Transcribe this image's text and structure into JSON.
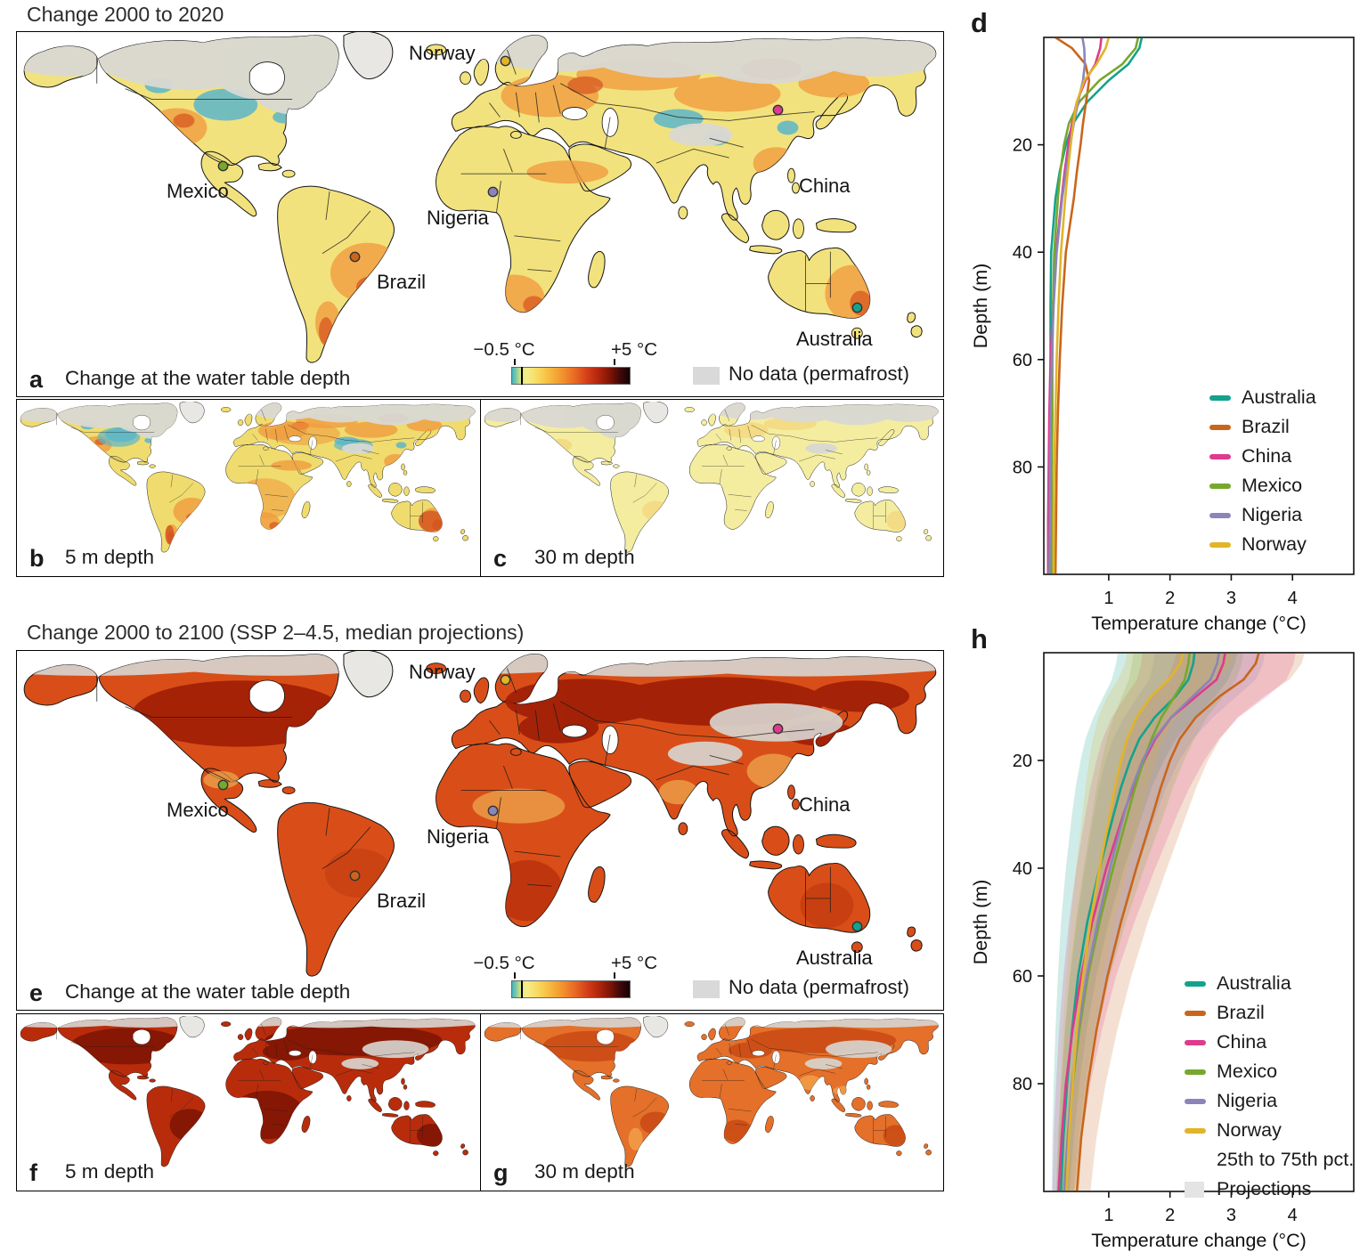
{
  "figure": {
    "section1_title": "Change 2000 to 2020",
    "section2_title": "Change 2000 to 2100 (SSP 2–4.5, median projections)",
    "colorbar": {
      "min": "−0.5 °C",
      "max": "+5 °C",
      "range": [
        -0.5,
        5
      ],
      "nodata": "No data (permafrost)",
      "nodata_color": "#d9d9d9"
    },
    "panels": {
      "a": {
        "letter": "a",
        "caption": "Change at the water table depth"
      },
      "b": {
        "letter": "b",
        "caption": "5 m depth"
      },
      "c": {
        "letter": "c",
        "caption": "30 m depth"
      },
      "d": {
        "letter": "d"
      },
      "e": {
        "letter": "e",
        "caption": "Change at the water table depth"
      },
      "f": {
        "letter": "f",
        "caption": "5 m depth"
      },
      "g": {
        "letter": "g",
        "caption": "30 m depth"
      },
      "h": {
        "letter": "h"
      }
    },
    "markers": [
      {
        "name": "Norway",
        "color": "#e2b428"
      },
      {
        "name": "China",
        "color": "#de3a8e"
      },
      {
        "name": "Mexico",
        "color": "#76a82d"
      },
      {
        "name": "Nigeria",
        "color": "#8b85b9"
      },
      {
        "name": "Brazil",
        "color": "#c9661c"
      },
      {
        "name": "Australia",
        "color": "#14a28c"
      }
    ],
    "projections_legend": {
      "range_label": "25th to 75th pct.",
      "name": "Projections",
      "swatch_color": "#e4e4e4"
    }
  },
  "chart_data": [
    {
      "type": "line",
      "panel": "d",
      "title": "Groundwater temperature change 2000 to 2020 vs depth",
      "xlabel": "Temperature change (°C)",
      "ylabel": "Depth (m)",
      "xlim": [
        0,
        5
      ],
      "ylim": [
        0,
        100
      ],
      "xticks": [
        1,
        2,
        3,
        4
      ],
      "yticks": [
        20,
        40,
        60,
        80
      ],
      "legend_position": "inside-right",
      "depths": [
        0,
        2,
        5,
        8,
        12,
        16,
        20,
        25,
        30,
        40,
        50,
        60,
        70,
        80,
        90,
        100
      ],
      "series": [
        {
          "name": "Australia",
          "color": "#14a28c",
          "values": [
            1.54,
            1.5,
            1.32,
            1.0,
            0.65,
            0.42,
            0.3,
            0.2,
            0.13,
            0.06,
            0.05,
            0.05,
            0.05,
            0.05,
            0.05,
            0.05
          ]
        },
        {
          "name": "Brazil",
          "color": "#c9661c",
          "values": [
            0.13,
            0.4,
            0.62,
            0.68,
            0.63,
            0.58,
            0.54,
            0.48,
            0.43,
            0.3,
            0.24,
            0.2,
            0.17,
            0.15,
            0.14,
            0.13
          ]
        },
        {
          "name": "China",
          "color": "#de3a8e",
          "values": [
            0.88,
            0.86,
            0.78,
            0.62,
            0.48,
            0.4,
            0.34,
            0.28,
            0.23,
            0.14,
            0.09,
            0.05,
            0.03,
            0.02,
            0.01,
            0.01
          ]
        },
        {
          "name": "Mexico",
          "color": "#76a82d",
          "values": [
            1.48,
            1.44,
            1.22,
            0.85,
            0.52,
            0.35,
            0.27,
            0.21,
            0.17,
            0.11,
            0.09,
            0.08,
            0.08,
            0.07,
            0.07,
            0.07
          ]
        },
        {
          "name": "Nigeria",
          "color": "#8b85b9",
          "values": [
            0.57,
            0.6,
            0.61,
            0.58,
            0.5,
            0.43,
            0.37,
            0.3,
            0.24,
            0.15,
            0.1,
            0.07,
            0.05,
            0.04,
            0.04,
            0.03
          ]
        },
        {
          "name": "Norway",
          "color": "#e2b428",
          "values": [
            1.0,
            0.95,
            0.8,
            0.6,
            0.48,
            0.42,
            0.38,
            0.33,
            0.29,
            0.22,
            0.18,
            0.15,
            0.13,
            0.11,
            0.1,
            0.1
          ]
        }
      ]
    },
    {
      "type": "line",
      "panel": "h",
      "title": "Groundwater temperature change 2000 to 2100 vs depth (SSP 2–4.5 median, with 25th to 75th pct. projections)",
      "xlabel": "Temperature change (°C)",
      "ylabel": "Depth (m)",
      "xlim": [
        0,
        5
      ],
      "ylim": [
        0,
        100
      ],
      "xticks": [
        1,
        2,
        3,
        4
      ],
      "yticks": [
        20,
        40,
        60,
        80
      ],
      "legend_position": "inside-right",
      "band_note": "25th to 75th pct. projections shown as shaded bands",
      "depths": [
        0,
        2,
        5,
        8,
        12,
        16,
        20,
        25,
        30,
        40,
        50,
        60,
        70,
        80,
        90,
        100
      ],
      "series": [
        {
          "name": "Australia",
          "color": "#14a28c",
          "values": [
            2.4,
            2.38,
            2.3,
            2.1,
            1.75,
            1.5,
            1.35,
            1.2,
            1.08,
            0.85,
            0.65,
            0.5,
            0.4,
            0.32,
            0.26,
            0.22
          ],
          "lo": [
            1.15,
            1.12,
            1.05,
            0.92,
            0.75,
            0.62,
            0.54,
            0.46,
            0.4,
            0.3,
            0.22,
            0.17,
            0.13,
            0.1,
            0.08,
            0.07
          ],
          "hi": [
            3.1,
            3.06,
            2.95,
            2.75,
            2.4,
            2.1,
            1.9,
            1.7,
            1.55,
            1.25,
            1.0,
            0.8,
            0.64,
            0.52,
            0.43,
            0.36
          ]
        },
        {
          "name": "Brazil",
          "color": "#c9661c",
          "values": [
            3.45,
            3.4,
            3.2,
            2.82,
            2.42,
            2.16,
            2.0,
            1.85,
            1.72,
            1.45,
            1.2,
            0.98,
            0.8,
            0.66,
            0.55,
            0.48
          ],
          "lo": [
            2.1,
            2.06,
            1.95,
            1.72,
            1.48,
            1.32,
            1.22,
            1.12,
            1.04,
            0.87,
            0.72,
            0.59,
            0.48,
            0.4,
            0.33,
            0.29
          ],
          "hi": [
            4.2,
            4.15,
            3.95,
            3.55,
            3.1,
            2.82,
            2.62,
            2.43,
            2.27,
            1.95,
            1.64,
            1.37,
            1.14,
            0.95,
            0.8,
            0.7
          ]
        },
        {
          "name": "China",
          "color": "#de3a8e",
          "values": [
            2.9,
            2.87,
            2.76,
            2.44,
            2.02,
            1.76,
            1.58,
            1.4,
            1.24,
            0.96,
            0.73,
            0.55,
            0.41,
            0.3,
            0.23,
            0.18
          ],
          "lo": [
            1.55,
            1.53,
            1.46,
            1.28,
            1.05,
            0.9,
            0.8,
            0.7,
            0.62,
            0.47,
            0.35,
            0.26,
            0.19,
            0.14,
            0.1,
            0.08
          ],
          "hi": [
            4.05,
            4.02,
            3.9,
            3.6,
            3.12,
            2.8,
            2.56,
            2.32,
            2.12,
            1.76,
            1.42,
            1.12,
            0.89,
            0.7,
            0.56,
            0.45
          ]
        },
        {
          "name": "Mexico",
          "color": "#76a82d",
          "values": [
            2.32,
            2.3,
            2.24,
            2.08,
            1.86,
            1.7,
            1.57,
            1.43,
            1.31,
            1.07,
            0.85,
            0.66,
            0.52,
            0.41,
            0.33,
            0.27
          ],
          "lo": [
            1.4,
            1.38,
            1.33,
            1.22,
            1.08,
            0.97,
            0.89,
            0.8,
            0.73,
            0.59,
            0.46,
            0.36,
            0.28,
            0.22,
            0.17,
            0.14
          ],
          "hi": [
            3.2,
            3.17,
            3.08,
            2.88,
            2.6,
            2.4,
            2.23,
            2.05,
            1.9,
            1.58,
            1.28,
            1.02,
            0.82,
            0.65,
            0.53,
            0.44
          ]
        },
        {
          "name": "Nigeria",
          "color": "#8b85b9",
          "values": [
            2.8,
            2.77,
            2.66,
            2.38,
            2.02,
            1.74,
            1.55,
            1.38,
            1.25,
            1.02,
            0.82,
            0.64,
            0.5,
            0.4,
            0.33,
            0.28
          ],
          "lo": [
            1.75,
            1.73,
            1.66,
            1.48,
            1.25,
            1.07,
            0.95,
            0.84,
            0.76,
            0.61,
            0.48,
            0.37,
            0.29,
            0.23,
            0.18,
            0.15
          ],
          "hi": [
            3.55,
            3.52,
            3.4,
            3.1,
            2.7,
            2.38,
            2.15,
            1.94,
            1.77,
            1.47,
            1.2,
            0.96,
            0.77,
            0.62,
            0.51,
            0.43
          ]
        },
        {
          "name": "Norway",
          "color": "#e2b428",
          "values": [
            2.22,
            2.17,
            1.98,
            1.7,
            1.45,
            1.3,
            1.2,
            1.1,
            1.02,
            0.85,
            0.7,
            0.58,
            0.48,
            0.41,
            0.35,
            0.31
          ],
          "lo": [
            1.3,
            1.27,
            1.15,
            0.98,
            0.83,
            0.74,
            0.68,
            0.62,
            0.57,
            0.47,
            0.38,
            0.31,
            0.25,
            0.21,
            0.18,
            0.16
          ],
          "hi": [
            3.05,
            3.0,
            2.78,
            2.42,
            2.1,
            1.9,
            1.77,
            1.64,
            1.53,
            1.3,
            1.09,
            0.91,
            0.77,
            0.66,
            0.57,
            0.51
          ]
        }
      ]
    }
  ]
}
